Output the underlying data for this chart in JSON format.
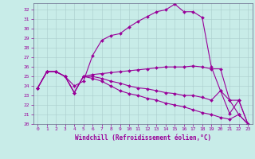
{
  "background_color": "#c8ece8",
  "grid_color": "#aacccc",
  "line_color": "#990099",
  "xlabel": "Windchill (Refroidissement éolien,°C)",
  "xlabel_color": "#990099",
  "tick_color": "#990099",
  "spine_color": "#666688",
  "xlim": [
    -0.5,
    23.5
  ],
  "ylim": [
    20,
    32.7
  ],
  "yticks": [
    20,
    21,
    22,
    23,
    24,
    25,
    26,
    27,
    28,
    29,
    30,
    31,
    32
  ],
  "xticks": [
    0,
    1,
    2,
    3,
    4,
    5,
    6,
    7,
    8,
    9,
    10,
    11,
    12,
    13,
    14,
    15,
    16,
    17,
    18,
    19,
    20,
    21,
    22,
    23
  ],
  "lines": [
    {
      "x": [
        0,
        1,
        2,
        3,
        4,
        5,
        6,
        7,
        8,
        9,
        10,
        11,
        12,
        13,
        14,
        15,
        16,
        17,
        18,
        19,
        20,
        21,
        22,
        23
      ],
      "y": [
        23.8,
        25.5,
        25.5,
        25.0,
        24.0,
        24.5,
        27.2,
        28.8,
        29.3,
        29.5,
        30.2,
        30.8,
        31.3,
        31.8,
        32.0,
        32.6,
        31.8,
        31.8,
        31.2,
        26.0,
        23.5,
        21.1,
        22.5,
        20.0
      ]
    },
    {
      "x": [
        0,
        1,
        2,
        3,
        4,
        5,
        6,
        7,
        8,
        9,
        10,
        11,
        12,
        13,
        14,
        15,
        16,
        17,
        18,
        19,
        20,
        21,
        22,
        23
      ],
      "y": [
        23.8,
        25.5,
        25.5,
        25.0,
        23.3,
        25.0,
        25.2,
        25.3,
        25.4,
        25.5,
        25.6,
        25.7,
        25.8,
        25.9,
        26.0,
        26.0,
        26.0,
        26.1,
        26.0,
        25.8,
        25.8,
        22.5,
        22.5,
        20.0
      ]
    },
    {
      "x": [
        0,
        1,
        2,
        3,
        4,
        5,
        6,
        7,
        8,
        9,
        10,
        11,
        12,
        13,
        14,
        15,
        16,
        17,
        18,
        19,
        20,
        21,
        22,
        23
      ],
      "y": [
        23.8,
        25.5,
        25.5,
        25.0,
        23.3,
        25.0,
        25.0,
        24.8,
        24.5,
        24.3,
        24.0,
        23.8,
        23.7,
        23.5,
        23.3,
        23.2,
        23.0,
        23.0,
        22.8,
        22.5,
        23.5,
        22.5,
        21.0,
        20.0
      ]
    },
    {
      "x": [
        0,
        1,
        2,
        3,
        4,
        5,
        6,
        7,
        8,
        9,
        10,
        11,
        12,
        13,
        14,
        15,
        16,
        17,
        18,
        19,
        20,
        21,
        22,
        23
      ],
      "y": [
        23.8,
        25.5,
        25.5,
        25.0,
        23.3,
        25.0,
        24.8,
        24.5,
        24.0,
        23.5,
        23.2,
        23.0,
        22.7,
        22.5,
        22.2,
        22.0,
        21.8,
        21.5,
        21.2,
        21.0,
        20.7,
        20.5,
        21.0,
        20.0
      ]
    }
  ]
}
